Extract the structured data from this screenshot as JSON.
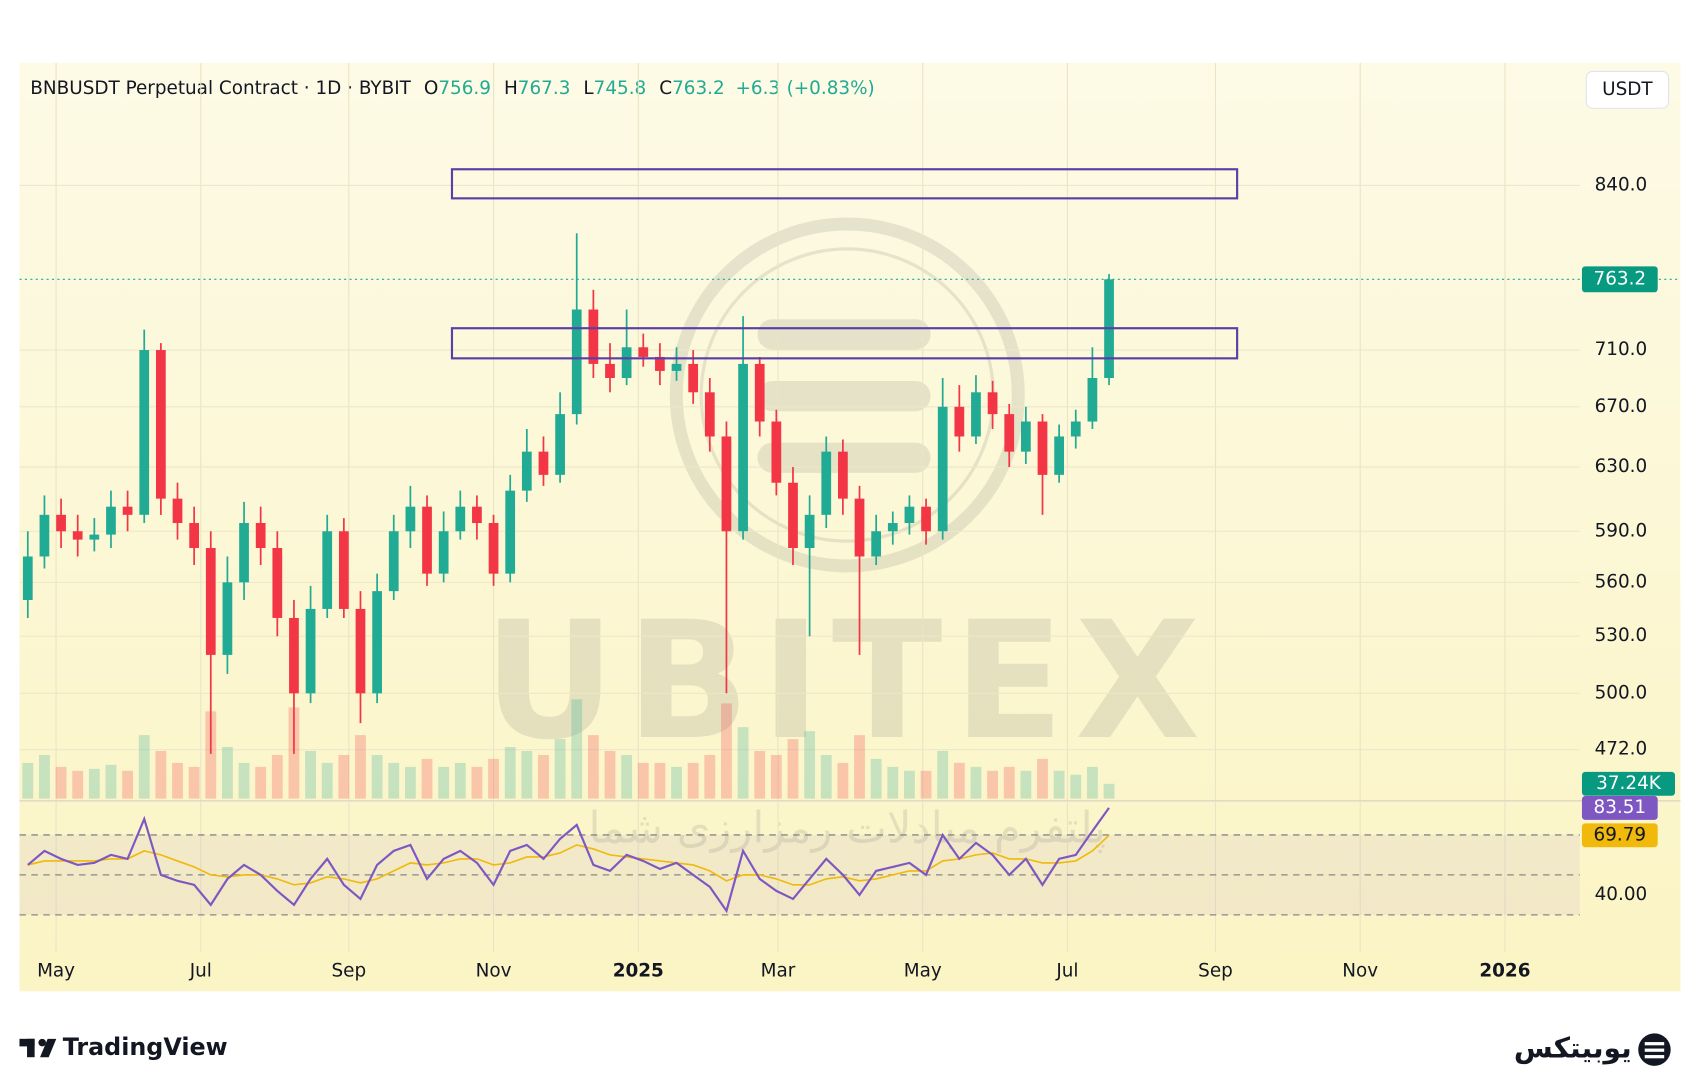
{
  "chart_data": {
    "type": "candlestick",
    "title": "BNBUSDT Perpetual Contract · 1D · BYBIT",
    "ohlc": [
      {
        "label": "O",
        "value": 756.9
      },
      {
        "label": "H",
        "value": 767.3
      },
      {
        "label": "L",
        "value": 745.8
      },
      {
        "label": "C",
        "value": 763.2
      }
    ],
    "change": {
      "value": 6.3,
      "label": "+6.3"
    },
    "change_pct": {
      "value": 0.83,
      "label": "(+0.83%)"
    },
    "currency": "USDT",
    "log_scale": true,
    "grid": true,
    "up_color": "#22ab94",
    "down_color": "#f23645",
    "xlim": [
      -0.5,
      93.3
    ],
    "xticks": [
      {
        "value": 1.7,
        "label": "May"
      },
      {
        "value": 10.4,
        "label": "Jul"
      },
      {
        "value": 19.3,
        "label": "Sep"
      },
      {
        "value": 28.0,
        "label": "Nov"
      },
      {
        "value": 36.7,
        "label": "2025"
      },
      {
        "value": 45.1,
        "label": "Mar"
      },
      {
        "value": 53.8,
        "label": "May"
      },
      {
        "value": 62.5,
        "label": "Jul"
      },
      {
        "value": 71.4,
        "label": "Sep"
      },
      {
        "value": 80.1,
        "label": "Nov"
      },
      {
        "value": 88.8,
        "label": "2026"
      }
    ],
    "ylim": [
      449,
      950
    ],
    "yticks": [
      {
        "value": 840,
        "label": "840.0"
      },
      {
        "value": 710,
        "label": "710.0"
      },
      {
        "value": 670,
        "label": "670.0"
      },
      {
        "value": 630,
        "label": "630.0"
      },
      {
        "value": 590,
        "label": "590.0"
      },
      {
        "value": 560,
        "label": "560.0"
      },
      {
        "value": 530,
        "label": "530.0"
      },
      {
        "value": 500,
        "label": "500.0"
      },
      {
        "value": 472,
        "label": "472.0"
      }
    ],
    "open": [
      550,
      575,
      600,
      590,
      585,
      588,
      605,
      600,
      710,
      610,
      595,
      580,
      520,
      560,
      595,
      580,
      540,
      500,
      545,
      590,
      545,
      500,
      555,
      590,
      605,
      565,
      590,
      605,
      595,
      565,
      615,
      640,
      625,
      665,
      740,
      700,
      690,
      712,
      705,
      695,
      700,
      680,
      650,
      590,
      700,
      660,
      620,
      580,
      600,
      640,
      610,
      575,
      590,
      595,
      605,
      590,
      670,
      650,
      680,
      665,
      640,
      660,
      625,
      650,
      660,
      690
    ],
    "high": [
      590,
      612,
      610,
      600,
      598,
      615,
      615,
      725,
      715,
      620,
      605,
      590,
      575,
      608,
      605,
      590,
      550,
      558,
      600,
      598,
      555,
      565,
      600,
      618,
      612,
      602,
      615,
      612,
      600,
      625,
      655,
      650,
      680,
      800,
      755,
      715,
      740,
      722,
      715,
      712,
      710,
      690,
      660,
      735,
      705,
      668,
      630,
      612,
      650,
      648,
      618,
      600,
      602,
      612,
      610,
      690,
      685,
      692,
      688,
      672,
      670,
      665,
      658,
      668,
      712,
      767.3
    ],
    "low": [
      540,
      568,
      580,
      575,
      578,
      580,
      590,
      595,
      600,
      585,
      570,
      470,
      510,
      550,
      570,
      530,
      470,
      495,
      540,
      540,
      485,
      495,
      550,
      580,
      558,
      560,
      585,
      585,
      558,
      560,
      608,
      618,
      620,
      658,
      690,
      680,
      685,
      698,
      685,
      688,
      672,
      640,
      500,
      585,
      650,
      612,
      570,
      530,
      592,
      600,
      520,
      570,
      582,
      588,
      582,
      585,
      640,
      645,
      655,
      630,
      632,
      600,
      620,
      642,
      655,
      685
    ],
    "close": [
      575,
      600,
      590,
      585,
      588,
      605,
      600,
      710,
      610,
      595,
      580,
      520,
      560,
      595,
      580,
      540,
      500,
      545,
      590,
      545,
      500,
      555,
      590,
      605,
      565,
      590,
      605,
      595,
      565,
      615,
      640,
      625,
      665,
      740,
      700,
      690,
      712,
      705,
      695,
      700,
      680,
      650,
      590,
      700,
      660,
      620,
      580,
      600,
      640,
      610,
      575,
      590,
      595,
      605,
      590,
      670,
      650,
      680,
      665,
      640,
      660,
      625,
      650,
      660,
      690,
      763.2
    ],
    "zones": [
      {
        "x": [
          25.5,
          72.7
        ],
        "y": [
          829,
          854
        ],
        "color": "#5b3fa6"
      },
      {
        "x": [
          25.5,
          72.7
        ],
        "y": [
          704,
          726
        ],
        "color": "#5b3fa6"
      }
    ],
    "volume": {
      "vlim": [
        0,
        300000
      ],
      "values": [
        90000,
        110000,
        80000,
        70000,
        75000,
        85000,
        70000,
        160000,
        120000,
        90000,
        80000,
        220000,
        130000,
        90000,
        80000,
        110000,
        230000,
        120000,
        90000,
        110000,
        160000,
        110000,
        90000,
        80000,
        100000,
        80000,
        90000,
        80000,
        100000,
        130000,
        120000,
        110000,
        150000,
        250000,
        160000,
        120000,
        110000,
        90000,
        90000,
        80000,
        90000,
        110000,
        240000,
        180000,
        120000,
        110000,
        150000,
        170000,
        110000,
        90000,
        160000,
        100000,
        80000,
        70000,
        70000,
        120000,
        90000,
        80000,
        70000,
        80000,
        70000,
        100000,
        70000,
        60000,
        80000,
        37240
      ]
    },
    "volume_label": {
      "value": 37240,
      "label": "37.24K"
    },
    "rsi": {
      "ylim": [
        16.7,
        86
      ],
      "bands": [
        70,
        50,
        30
      ],
      "yticks": [
        {
          "value": 40,
          "label": "40.00"
        }
      ],
      "color": "#7e57c2",
      "ma_color": "#f0b90b",
      "values": [
        55,
        62,
        58,
        55,
        56,
        60,
        58,
        78,
        50,
        47,
        45,
        35,
        48,
        55,
        50,
        42,
        35,
        48,
        58,
        45,
        38,
        55,
        62,
        65,
        48,
        58,
        62,
        56,
        45,
        62,
        65,
        58,
        68,
        75,
        55,
        52,
        60,
        57,
        53,
        56,
        50,
        44,
        32,
        62,
        48,
        42,
        38,
        48,
        58,
        50,
        40,
        52,
        54,
        56,
        50,
        70,
        58,
        66,
        60,
        50,
        58,
        45,
        58,
        60,
        72,
        83.51
      ],
      "ma": [
        55,
        57,
        57,
        57,
        57,
        58,
        58,
        62,
        60,
        57,
        54,
        50,
        49,
        50,
        50,
        48,
        45,
        46,
        49,
        48,
        46,
        48,
        52,
        56,
        55,
        56,
        58,
        58,
        55,
        56,
        59,
        59,
        61,
        65,
        63,
        60,
        59,
        58,
        57,
        56,
        55,
        52,
        47,
        50,
        50,
        48,
        45,
        45,
        48,
        49,
        47,
        48,
        50,
        52,
        52,
        57,
        58,
        60,
        61,
        58,
        58,
        56,
        56,
        57,
        62,
        69.79
      ]
    },
    "watermark": {
      "brand": "UBITEX",
      "tagline": "پلتفرم مبادلات رمزارزی شما"
    },
    "footer": {
      "left": "TradingView",
      "right": "یوبیتکس"
    }
  }
}
